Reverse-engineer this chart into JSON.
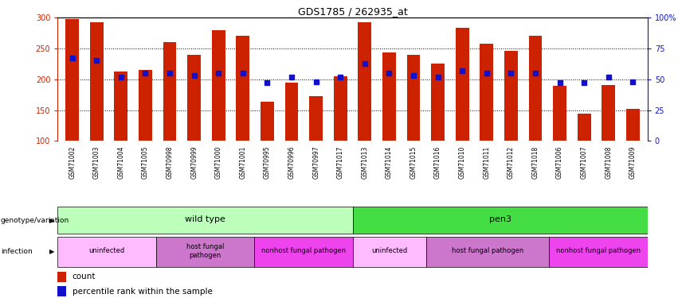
{
  "title": "GDS1785 / 262935_at",
  "samples": [
    "GSM71002",
    "GSM71003",
    "GSM71004",
    "GSM71005",
    "GSM70998",
    "GSM70999",
    "GSM71000",
    "GSM71001",
    "GSM70995",
    "GSM70996",
    "GSM70997",
    "GSM71017",
    "GSM71013",
    "GSM71014",
    "GSM71015",
    "GSM71016",
    "GSM71010",
    "GSM71011",
    "GSM71012",
    "GSM71018",
    "GSM71006",
    "GSM71007",
    "GSM71008",
    "GSM71009"
  ],
  "counts": [
    298,
    293,
    212,
    215,
    260,
    240,
    280,
    270,
    163,
    194,
    172,
    205,
    293,
    244,
    239,
    225,
    283,
    258,
    246,
    270,
    190,
    144,
    191,
    152
  ],
  "percentile_ranks": [
    67,
    65,
    52,
    55,
    55,
    53,
    55,
    55,
    47,
    52,
    48,
    52,
    63,
    55,
    53,
    52,
    57,
    55,
    55,
    55,
    47,
    47,
    52,
    48
  ],
  "bar_color": "#cc2200",
  "dot_color": "#1111cc",
  "y_min": 100,
  "y_max": 300,
  "y_ticks": [
    100,
    150,
    200,
    250,
    300
  ],
  "y_right_ticks": [
    0,
    25,
    50,
    75,
    100
  ],
  "y_right_labels": [
    "0",
    "25",
    "50",
    "75",
    "100%"
  ],
  "grid_lines": [
    150,
    200,
    250
  ],
  "genotype_groups": [
    {
      "label": "wild type",
      "start": 0,
      "end": 11,
      "color": "#bbffbb"
    },
    {
      "label": "pen3",
      "start": 12,
      "end": 23,
      "color": "#44dd44"
    }
  ],
  "infection_groups": [
    {
      "label": "uninfected",
      "start": 0,
      "end": 3,
      "color": "#ffbbff"
    },
    {
      "label": "host fungal\npathogen",
      "start": 4,
      "end": 7,
      "color": "#cc77cc"
    },
    {
      "label": "nonhost fungal pathogen",
      "start": 8,
      "end": 11,
      "color": "#ee44ee"
    },
    {
      "label": "uninfected",
      "start": 12,
      "end": 14,
      "color": "#ffbbff"
    },
    {
      "label": "host fungal pathogen",
      "start": 15,
      "end": 19,
      "color": "#cc77cc"
    },
    {
      "label": "nonhost fungal pathogen",
      "start": 20,
      "end": 23,
      "color": "#ee44ee"
    }
  ],
  "bar_width": 0.55,
  "axis_color_left": "#cc2200",
  "axis_color_right": "#1111cc",
  "fig_width": 8.51,
  "fig_height": 3.75,
  "dpi": 100
}
